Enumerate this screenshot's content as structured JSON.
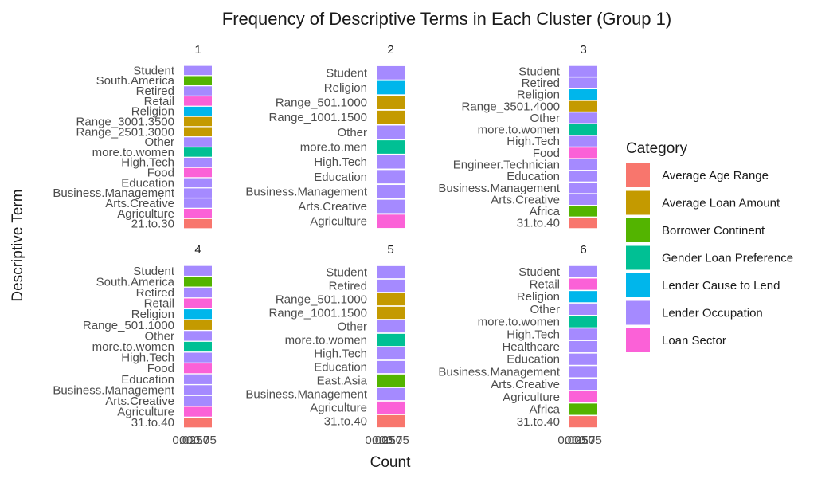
{
  "chart_data": {
    "type": "bar",
    "title": "Frequency of Descriptive Terms in Each Cluster (Group 1)",
    "xlabel": "Count",
    "ylabel": "Descriptive Term",
    "x_tick_labels": [
      "0.00",
      "0.25",
      "0.50",
      "0.75"
    ],
    "xlim": [
      0,
      1
    ],
    "legend": {
      "title": "Category",
      "position": "right",
      "items": [
        {
          "label": "Average Age Range",
          "color": "#F8766D"
        },
        {
          "label": "Average Loan Amount",
          "color": "#C49A00"
        },
        {
          "label": "Borrower Continent",
          "color": "#53B400"
        },
        {
          "label": "Gender Loan Preference",
          "color": "#00C094"
        },
        {
          "label": "Lender Cause to Lend",
          "color": "#00B6EB"
        },
        {
          "label": "Lender Occupation",
          "color": "#A58AFF"
        },
        {
          "label": "Loan Sector",
          "color": "#FB61D7"
        }
      ]
    },
    "panels": [
      {
        "label": "1",
        "terms": [
          {
            "term": "Student",
            "category": "Lender Occupation",
            "value": 1
          },
          {
            "term": "South.America",
            "category": "Borrower Continent",
            "value": 1
          },
          {
            "term": "Retired",
            "category": "Lender Occupation",
            "value": 1
          },
          {
            "term": "Retail",
            "category": "Loan Sector",
            "value": 1
          },
          {
            "term": "Religion",
            "category": "Lender Cause to Lend",
            "value": 1
          },
          {
            "term": "Range_3001.3500",
            "category": "Average Loan Amount",
            "value": 1
          },
          {
            "term": "Range_2501.3000",
            "category": "Average Loan Amount",
            "value": 1
          },
          {
            "term": "Other",
            "category": "Lender Occupation",
            "value": 1
          },
          {
            "term": "more.to.women",
            "category": "Gender Loan Preference",
            "value": 1
          },
          {
            "term": "High.Tech",
            "category": "Lender Occupation",
            "value": 1
          },
          {
            "term": "Food",
            "category": "Loan Sector",
            "value": 1
          },
          {
            "term": "Education",
            "category": "Lender Occupation",
            "value": 1
          },
          {
            "term": "Business.Management",
            "category": "Lender Occupation",
            "value": 1
          },
          {
            "term": "Arts.Creative",
            "category": "Lender Occupation",
            "value": 1
          },
          {
            "term": "Agriculture",
            "category": "Loan Sector",
            "value": 1
          },
          {
            "term": "21.to.30",
            "category": "Average Age Range",
            "value": 1
          }
        ]
      },
      {
        "label": "2",
        "terms": [
          {
            "term": "Student",
            "category": "Lender Occupation",
            "value": 1
          },
          {
            "term": "Religion",
            "category": "Lender Cause to Lend",
            "value": 1
          },
          {
            "term": "Range_501.1000",
            "category": "Average Loan Amount",
            "value": 1
          },
          {
            "term": "Range_1001.1500",
            "category": "Average Loan Amount",
            "value": 1
          },
          {
            "term": "Other",
            "category": "Lender Occupation",
            "value": 1
          },
          {
            "term": "more.to.men",
            "category": "Gender Loan Preference",
            "value": 1
          },
          {
            "term": "High.Tech",
            "category": "Lender Occupation",
            "value": 1
          },
          {
            "term": "Education",
            "category": "Lender Occupation",
            "value": 1
          },
          {
            "term": "Business.Management",
            "category": "Lender Occupation",
            "value": 1
          },
          {
            "term": "Arts.Creative",
            "category": "Lender Occupation",
            "value": 1
          },
          {
            "term": "Agriculture",
            "category": "Loan Sector",
            "value": 1
          }
        ]
      },
      {
        "label": "3",
        "terms": [
          {
            "term": "Student",
            "category": "Lender Occupation",
            "value": 1
          },
          {
            "term": "Retired",
            "category": "Lender Occupation",
            "value": 1
          },
          {
            "term": "Religion",
            "category": "Lender Cause to Lend",
            "value": 1
          },
          {
            "term": "Range_3501.4000",
            "category": "Average Loan Amount",
            "value": 1
          },
          {
            "term": "Other",
            "category": "Lender Occupation",
            "value": 1
          },
          {
            "term": "more.to.women",
            "category": "Gender Loan Preference",
            "value": 1
          },
          {
            "term": "High.Tech",
            "category": "Lender Occupation",
            "value": 1
          },
          {
            "term": "Food",
            "category": "Loan Sector",
            "value": 1
          },
          {
            "term": "Engineer.Technician",
            "category": "Lender Occupation",
            "value": 1
          },
          {
            "term": "Education",
            "category": "Lender Occupation",
            "value": 1
          },
          {
            "term": "Business.Management",
            "category": "Lender Occupation",
            "value": 1
          },
          {
            "term": "Arts.Creative",
            "category": "Lender Occupation",
            "value": 1
          },
          {
            "term": "Africa",
            "category": "Borrower Continent",
            "value": 1
          },
          {
            "term": "31.to.40",
            "category": "Average Age Range",
            "value": 1
          }
        ]
      },
      {
        "label": "4",
        "terms": [
          {
            "term": "Student",
            "category": "Lender Occupation",
            "value": 1
          },
          {
            "term": "South.America",
            "category": "Borrower Continent",
            "value": 1
          },
          {
            "term": "Retired",
            "category": "Lender Occupation",
            "value": 1
          },
          {
            "term": "Retail",
            "category": "Loan Sector",
            "value": 1
          },
          {
            "term": "Religion",
            "category": "Lender Cause to Lend",
            "value": 1
          },
          {
            "term": "Range_501.1000",
            "category": "Average Loan Amount",
            "value": 1
          },
          {
            "term": "Other",
            "category": "Lender Occupation",
            "value": 1
          },
          {
            "term": "more.to.women",
            "category": "Gender Loan Preference",
            "value": 1
          },
          {
            "term": "High.Tech",
            "category": "Lender Occupation",
            "value": 1
          },
          {
            "term": "Food",
            "category": "Loan Sector",
            "value": 1
          },
          {
            "term": "Education",
            "category": "Lender Occupation",
            "value": 1
          },
          {
            "term": "Business.Management",
            "category": "Lender Occupation",
            "value": 1
          },
          {
            "term": "Arts.Creative",
            "category": "Lender Occupation",
            "value": 1
          },
          {
            "term": "Agriculture",
            "category": "Loan Sector",
            "value": 1
          },
          {
            "term": "31.to.40",
            "category": "Average Age Range",
            "value": 1
          }
        ]
      },
      {
        "label": "5",
        "terms": [
          {
            "term": "Student",
            "category": "Lender Occupation",
            "value": 1
          },
          {
            "term": "Retired",
            "category": "Lender Occupation",
            "value": 1
          },
          {
            "term": "Range_501.1000",
            "category": "Average Loan Amount",
            "value": 1
          },
          {
            "term": "Range_1001.1500",
            "category": "Average Loan Amount",
            "value": 1
          },
          {
            "term": "Other",
            "category": "Lender Occupation",
            "value": 1
          },
          {
            "term": "more.to.women",
            "category": "Gender Loan Preference",
            "value": 1
          },
          {
            "term": "High.Tech",
            "category": "Lender Occupation",
            "value": 1
          },
          {
            "term": "Education",
            "category": "Lender Occupation",
            "value": 1
          },
          {
            "term": "East.Asia",
            "category": "Borrower Continent",
            "value": 1
          },
          {
            "term": "Business.Management",
            "category": "Lender Occupation",
            "value": 1
          },
          {
            "term": "Agriculture",
            "category": "Loan Sector",
            "value": 1
          },
          {
            "term": "31.to.40",
            "category": "Average Age Range",
            "value": 1
          }
        ]
      },
      {
        "label": "6",
        "terms": [
          {
            "term": "Student",
            "category": "Lender Occupation",
            "value": 1
          },
          {
            "term": "Retail",
            "category": "Loan Sector",
            "value": 1
          },
          {
            "term": "Religion",
            "category": "Lender Cause to Lend",
            "value": 1
          },
          {
            "term": "Other",
            "category": "Lender Occupation",
            "value": 1
          },
          {
            "term": "more.to.women",
            "category": "Gender Loan Preference",
            "value": 1
          },
          {
            "term": "High.Tech",
            "category": "Lender Occupation",
            "value": 1
          },
          {
            "term": "Healthcare",
            "category": "Lender Occupation",
            "value": 1
          },
          {
            "term": "Education",
            "category": "Lender Occupation",
            "value": 1
          },
          {
            "term": "Business.Management",
            "category": "Lender Occupation",
            "value": 1
          },
          {
            "term": "Arts.Creative",
            "category": "Lender Occupation",
            "value": 1
          },
          {
            "term": "Agriculture",
            "category": "Loan Sector",
            "value": 1
          },
          {
            "term": "Africa",
            "category": "Borrower Continent",
            "value": 1
          },
          {
            "term": "31.to.40",
            "category": "Average Age Range",
            "value": 1
          }
        ]
      }
    ]
  }
}
